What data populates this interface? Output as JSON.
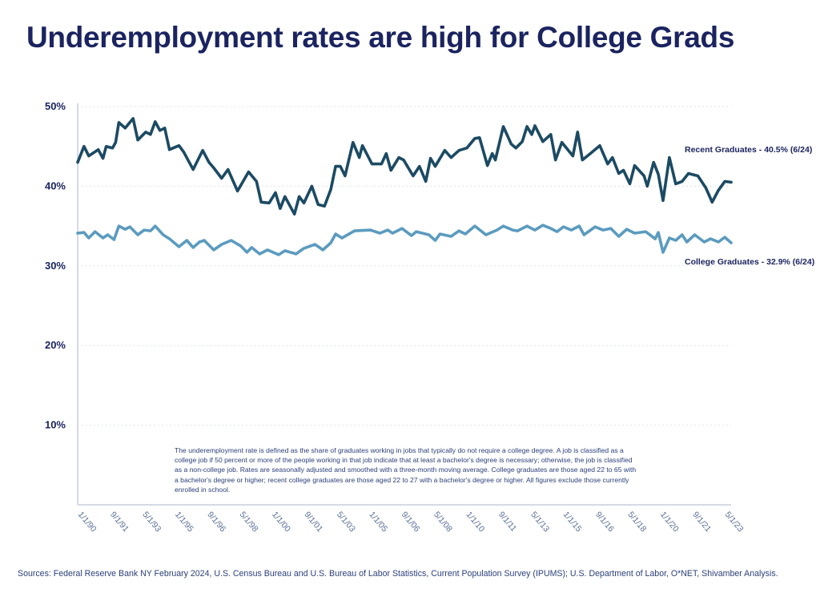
{
  "title": "Underemployment rates are high for College Grads",
  "note": "The underemployment rate is defined as the share of graduates working in jobs that typically do not require a college degree. A job is classified as a college job if 50 percent or more of the people working in that job indicate that at least a bachelor's degree is necessary; otherwise, the job is classified as a non-college job. Rates are seasonally adjusted and smoothed with a three-month moving average. College graduates are those aged 22 to 65 with a bachelor's degree or higher; recent college graduates are those aged 22 to 27 with a bachelor's degree or higher. All figures exclude those currently enrolled in school.",
  "sources": "Sources: Federal Reserve Bank NY February 2024, U.S. Census Bureau and U.S. Bureau of Labor Statistics, Current Population Survey (IPUMS); U.S. Department of Labor, O*NET, Shivamber Analysis.",
  "chart_data": {
    "type": "line",
    "title": "Underemployment rates are high for College Grads",
    "xlabel": "",
    "ylabel": "",
    "ylim": [
      0,
      50
    ],
    "xlim": [
      "1990-01",
      "2024-06"
    ],
    "y_ticks": [
      "10%",
      "20%",
      "30%",
      "40%",
      "50%"
    ],
    "y_tick_values": [
      10,
      20,
      30,
      40,
      50
    ],
    "x_ticks": [
      "1/1/90",
      "9/1/91",
      "5/1/93",
      "1/1/95",
      "9/1/96",
      "5/1/98",
      "1/1/00",
      "9/1/01",
      "5/1/03",
      "1/1/05",
      "9/1/06",
      "5/1/08",
      "1/1/10",
      "9/1/11",
      "5/1/13",
      "1/1/15",
      "9/1/16",
      "5/1/18",
      "1/1/20",
      "9/1/21",
      "5/1/23"
    ],
    "grid": "horizontal dotted",
    "legend": "none (direct labels at right)",
    "series": [
      {
        "name": "Recent Graduates - 40.5% (6/24)",
        "color": "#1c4a63",
        "points": [
          [
            "1990-01",
            43.0
          ],
          [
            "1990-05",
            45.0
          ],
          [
            "1990-08",
            43.8
          ],
          [
            "1991-02",
            44.6
          ],
          [
            "1991-05",
            43.5
          ],
          [
            "1991-07",
            45.0
          ],
          [
            "1991-11",
            44.8
          ],
          [
            "1992-01",
            45.5
          ],
          [
            "1992-03",
            48.0
          ],
          [
            "1992-07",
            47.3
          ],
          [
            "1992-12",
            48.5
          ],
          [
            "1993-03",
            45.8
          ],
          [
            "1993-08",
            46.8
          ],
          [
            "1993-11",
            46.5
          ],
          [
            "1994-02",
            48.1
          ],
          [
            "1994-05",
            47.0
          ],
          [
            "1994-08",
            47.3
          ],
          [
            "1994-11",
            44.6
          ],
          [
            "1995-05",
            45.1
          ],
          [
            "1995-08",
            44.3
          ],
          [
            "1996-02",
            42.1
          ],
          [
            "1996-08",
            44.5
          ],
          [
            "1996-12",
            43.0
          ],
          [
            "1997-03",
            42.3
          ],
          [
            "1997-08",
            41.0
          ],
          [
            "1997-12",
            42.1
          ],
          [
            "1998-06",
            39.4
          ],
          [
            "1999-01",
            41.8
          ],
          [
            "1999-06",
            40.6
          ],
          [
            "1999-09",
            38.0
          ],
          [
            "2000-02",
            37.9
          ],
          [
            "2000-06",
            39.2
          ],
          [
            "2000-09",
            37.2
          ],
          [
            "2000-12",
            38.7
          ],
          [
            "2001-06",
            36.5
          ],
          [
            "2001-09",
            38.7
          ],
          [
            "2001-12",
            37.9
          ],
          [
            "2002-05",
            40.0
          ],
          [
            "2002-09",
            37.7
          ],
          [
            "2003-01",
            37.5
          ],
          [
            "2003-05",
            39.6
          ],
          [
            "2003-08",
            42.5
          ],
          [
            "2003-11",
            42.5
          ],
          [
            "2004-02",
            41.3
          ],
          [
            "2004-07",
            45.5
          ],
          [
            "2004-11",
            43.6
          ],
          [
            "2005-01",
            45.1
          ],
          [
            "2005-07",
            42.8
          ],
          [
            "2006-01",
            42.8
          ],
          [
            "2006-04",
            44.1
          ],
          [
            "2006-07",
            42.0
          ],
          [
            "2006-12",
            43.6
          ],
          [
            "2007-03",
            43.3
          ],
          [
            "2007-09",
            41.3
          ],
          [
            "2008-01",
            42.5
          ],
          [
            "2008-05",
            40.6
          ],
          [
            "2008-08",
            43.5
          ],
          [
            "2008-11",
            42.5
          ],
          [
            "2009-02",
            43.5
          ],
          [
            "2009-05",
            44.5
          ],
          [
            "2009-09",
            43.6
          ],
          [
            "2010-02",
            44.5
          ],
          [
            "2010-07",
            44.8
          ],
          [
            "2010-12",
            46.0
          ],
          [
            "2011-03",
            46.1
          ],
          [
            "2011-08",
            42.6
          ],
          [
            "2011-11",
            44.1
          ],
          [
            "2012-01",
            43.3
          ],
          [
            "2012-06",
            47.5
          ],
          [
            "2012-11",
            45.3
          ],
          [
            "2013-02",
            44.8
          ],
          [
            "2013-06",
            45.6
          ],
          [
            "2013-09",
            47.5
          ],
          [
            "2013-12",
            46.5
          ],
          [
            "2014-02",
            47.6
          ],
          [
            "2014-07",
            45.6
          ],
          [
            "2014-12",
            46.5
          ],
          [
            "2015-03",
            43.3
          ],
          [
            "2015-07",
            45.5
          ],
          [
            "2016-02",
            43.8
          ],
          [
            "2016-05",
            46.8
          ],
          [
            "2016-08",
            43.3
          ],
          [
            "2017-01",
            44.1
          ],
          [
            "2017-07",
            45.1
          ],
          [
            "2017-12",
            42.8
          ],
          [
            "2018-03",
            43.6
          ],
          [
            "2018-07",
            41.6
          ],
          [
            "2018-10",
            42.0
          ],
          [
            "2019-02",
            40.3
          ],
          [
            "2019-05",
            42.6
          ],
          [
            "2019-11",
            41.3
          ],
          [
            "2020-01",
            40.0
          ],
          [
            "2020-05",
            43.0
          ],
          [
            "2020-08",
            41.5
          ],
          [
            "2020-11",
            38.2
          ],
          [
            "2021-03",
            43.6
          ],
          [
            "2021-07",
            40.3
          ],
          [
            "2021-11",
            40.6
          ],
          [
            "2022-03",
            41.6
          ],
          [
            "2022-09",
            41.3
          ],
          [
            "2023-02",
            39.8
          ],
          [
            "2023-06",
            38.0
          ],
          [
            "2023-10",
            39.5
          ],
          [
            "2024-02",
            40.6
          ],
          [
            "2024-06",
            40.5
          ]
        ]
      },
      {
        "name": "College Graduates - 32.9% (6/24)",
        "color": "#5b9bbf",
        "points": [
          [
            "1990-01",
            34.1
          ],
          [
            "1990-05",
            34.2
          ],
          [
            "1990-08",
            33.5
          ],
          [
            "1990-12",
            34.3
          ],
          [
            "1991-05",
            33.5
          ],
          [
            "1991-08",
            33.9
          ],
          [
            "1991-12",
            33.3
          ],
          [
            "1992-03",
            35.0
          ],
          [
            "1992-07",
            34.6
          ],
          [
            "1992-10",
            34.9
          ],
          [
            "1993-03",
            33.9
          ],
          [
            "1993-07",
            34.5
          ],
          [
            "1993-11",
            34.4
          ],
          [
            "1994-02",
            35.0
          ],
          [
            "1994-07",
            33.9
          ],
          [
            "1994-11",
            33.4
          ],
          [
            "1995-05",
            32.4
          ],
          [
            "1995-10",
            33.2
          ],
          [
            "1996-02",
            32.3
          ],
          [
            "1996-06",
            33.0
          ],
          [
            "1996-09",
            33.2
          ],
          [
            "1997-03",
            32.0
          ],
          [
            "1997-08",
            32.7
          ],
          [
            "1998-02",
            33.2
          ],
          [
            "1998-08",
            32.5
          ],
          [
            "1998-12",
            31.7
          ],
          [
            "1999-03",
            32.3
          ],
          [
            "1999-08",
            31.5
          ],
          [
            "2000-01",
            32.0
          ],
          [
            "2000-08",
            31.4
          ],
          [
            "2000-12",
            31.9
          ],
          [
            "2001-07",
            31.5
          ],
          [
            "2001-12",
            32.2
          ],
          [
            "2002-07",
            32.7
          ],
          [
            "2002-12",
            32.0
          ],
          [
            "2003-05",
            32.9
          ],
          [
            "2003-08",
            34.0
          ],
          [
            "2003-12",
            33.5
          ],
          [
            "2004-08",
            34.4
          ],
          [
            "2005-06",
            34.5
          ],
          [
            "2005-12",
            34.1
          ],
          [
            "2006-05",
            34.5
          ],
          [
            "2006-08",
            34.1
          ],
          [
            "2007-02",
            34.7
          ],
          [
            "2007-08",
            33.8
          ],
          [
            "2007-11",
            34.3
          ],
          [
            "2008-07",
            33.9
          ],
          [
            "2008-11",
            33.2
          ],
          [
            "2009-02",
            34.0
          ],
          [
            "2009-09",
            33.7
          ],
          [
            "2010-02",
            34.4
          ],
          [
            "2010-06",
            34.0
          ],
          [
            "2010-12",
            35.0
          ],
          [
            "2011-07",
            33.9
          ],
          [
            "2012-02",
            34.5
          ],
          [
            "2012-06",
            35.0
          ],
          [
            "2012-12",
            34.5
          ],
          [
            "2013-03",
            34.4
          ],
          [
            "2013-09",
            35.0
          ],
          [
            "2014-02",
            34.5
          ],
          [
            "2014-07",
            35.1
          ],
          [
            "2014-12",
            34.7
          ],
          [
            "2015-04",
            34.3
          ],
          [
            "2015-08",
            34.9
          ],
          [
            "2016-01",
            34.5
          ],
          [
            "2016-06",
            35.0
          ],
          [
            "2016-09",
            33.9
          ],
          [
            "2017-04",
            34.9
          ],
          [
            "2017-09",
            34.5
          ],
          [
            "2018-02",
            34.7
          ],
          [
            "2018-07",
            33.7
          ],
          [
            "2018-12",
            34.6
          ],
          [
            "2019-05",
            34.1
          ],
          [
            "2019-12",
            34.3
          ],
          [
            "2020-06",
            33.4
          ],
          [
            "2020-08",
            34.2
          ],
          [
            "2020-11",
            31.7
          ],
          [
            "2021-03",
            33.5
          ],
          [
            "2021-07",
            33.2
          ],
          [
            "2021-11",
            33.9
          ],
          [
            "2022-02",
            33.0
          ],
          [
            "2022-07",
            33.9
          ],
          [
            "2023-01",
            33.0
          ],
          [
            "2023-05",
            33.4
          ],
          [
            "2023-10",
            33.0
          ],
          [
            "2024-02",
            33.6
          ],
          [
            "2024-06",
            32.9
          ]
        ]
      }
    ]
  }
}
